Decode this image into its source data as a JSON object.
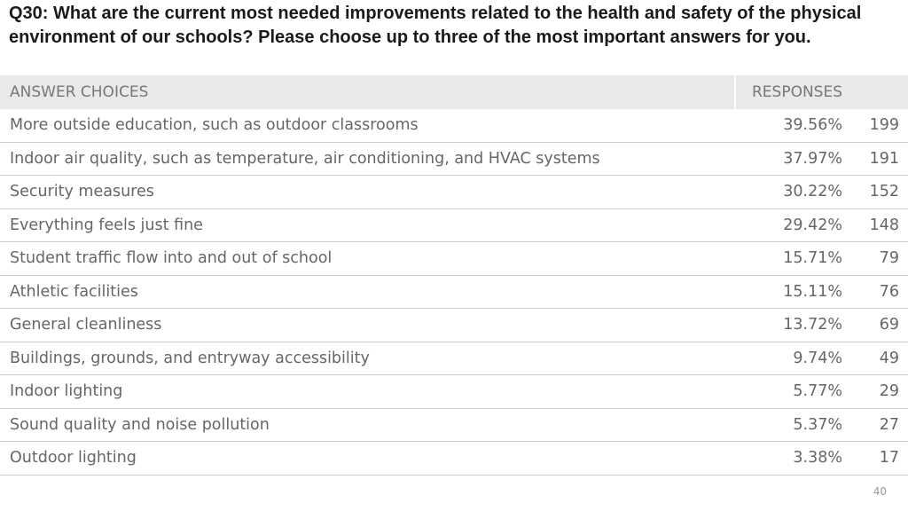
{
  "title": "Q30: What are the current most needed improvements related to the health and safety of the physical environment of our schools? Please choose up to three of the most important answers for you.",
  "header": {
    "answer_choices": "ANSWER CHOICES",
    "responses": "RESPONSES"
  },
  "rows": [
    {
      "label": "More outside education, such as outdoor classrooms",
      "pct": "39.56%",
      "count": "199"
    },
    {
      "label": "Indoor air quality, such as temperature, air conditioning, and HVAC systems",
      "pct": "37.97%",
      "count": "191"
    },
    {
      "label": "Security measures",
      "pct": "30.22%",
      "count": "152"
    },
    {
      "label": "Everything feels just fine",
      "pct": "29.42%",
      "count": "148"
    },
    {
      "label": "Student traffic flow into and out of school",
      "pct": "15.71%",
      "count": "79"
    },
    {
      "label": "Athletic facilities",
      "pct": "15.11%",
      "count": "76"
    },
    {
      "label": "General cleanliness",
      "pct": "13.72%",
      "count": "69"
    },
    {
      "label": "Buildings, grounds, and entryway accessibility",
      "pct": "9.74%",
      "count": "49"
    },
    {
      "label": "Indoor lighting",
      "pct": "5.77%",
      "count": "29"
    },
    {
      "label": "Sound quality and noise pollution",
      "pct": "5.37%",
      "count": "27"
    },
    {
      "label": "Outdoor lighting",
      "pct": "3.38%",
      "count": "17"
    }
  ],
  "page_number": "40"
}
